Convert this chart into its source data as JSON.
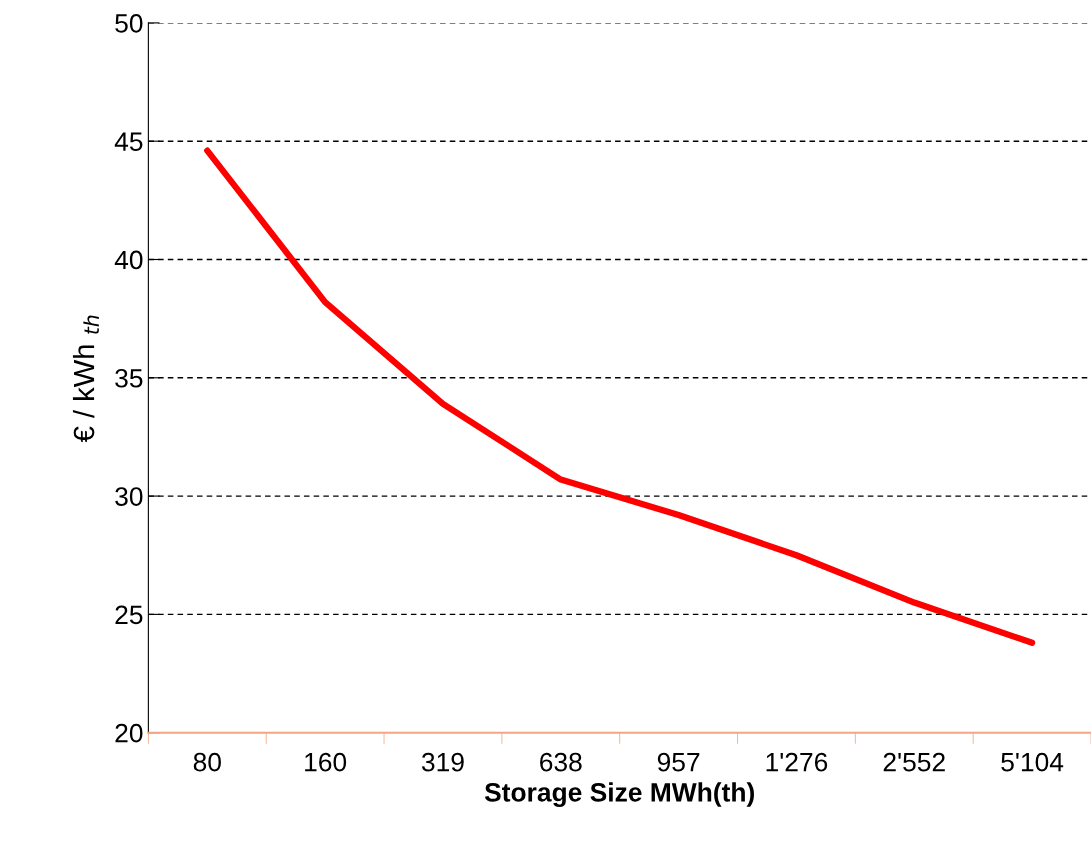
{
  "chart_data": {
    "type": "line",
    "xlabel": "Storage Size MWh(th)",
    "ylabel": "€ / kWh $_{th}$",
    "categories": [
      "80",
      "160",
      "319",
      "638",
      "957",
      "1'276",
      "2'552",
      "5'104"
    ],
    "series": [
      {
        "color": "#ff0000",
        "values": [
          44.6,
          38.2,
          33.9,
          30.7,
          29.2,
          27.5,
          25.5,
          23.8
        ]
      }
    ],
    "ylim": [
      20,
      50
    ],
    "yticks": [
      20,
      25,
      30,
      35,
      40,
      45,
      50
    ],
    "grid": "y",
    "line_style": "solid",
    "marker": "none"
  }
}
